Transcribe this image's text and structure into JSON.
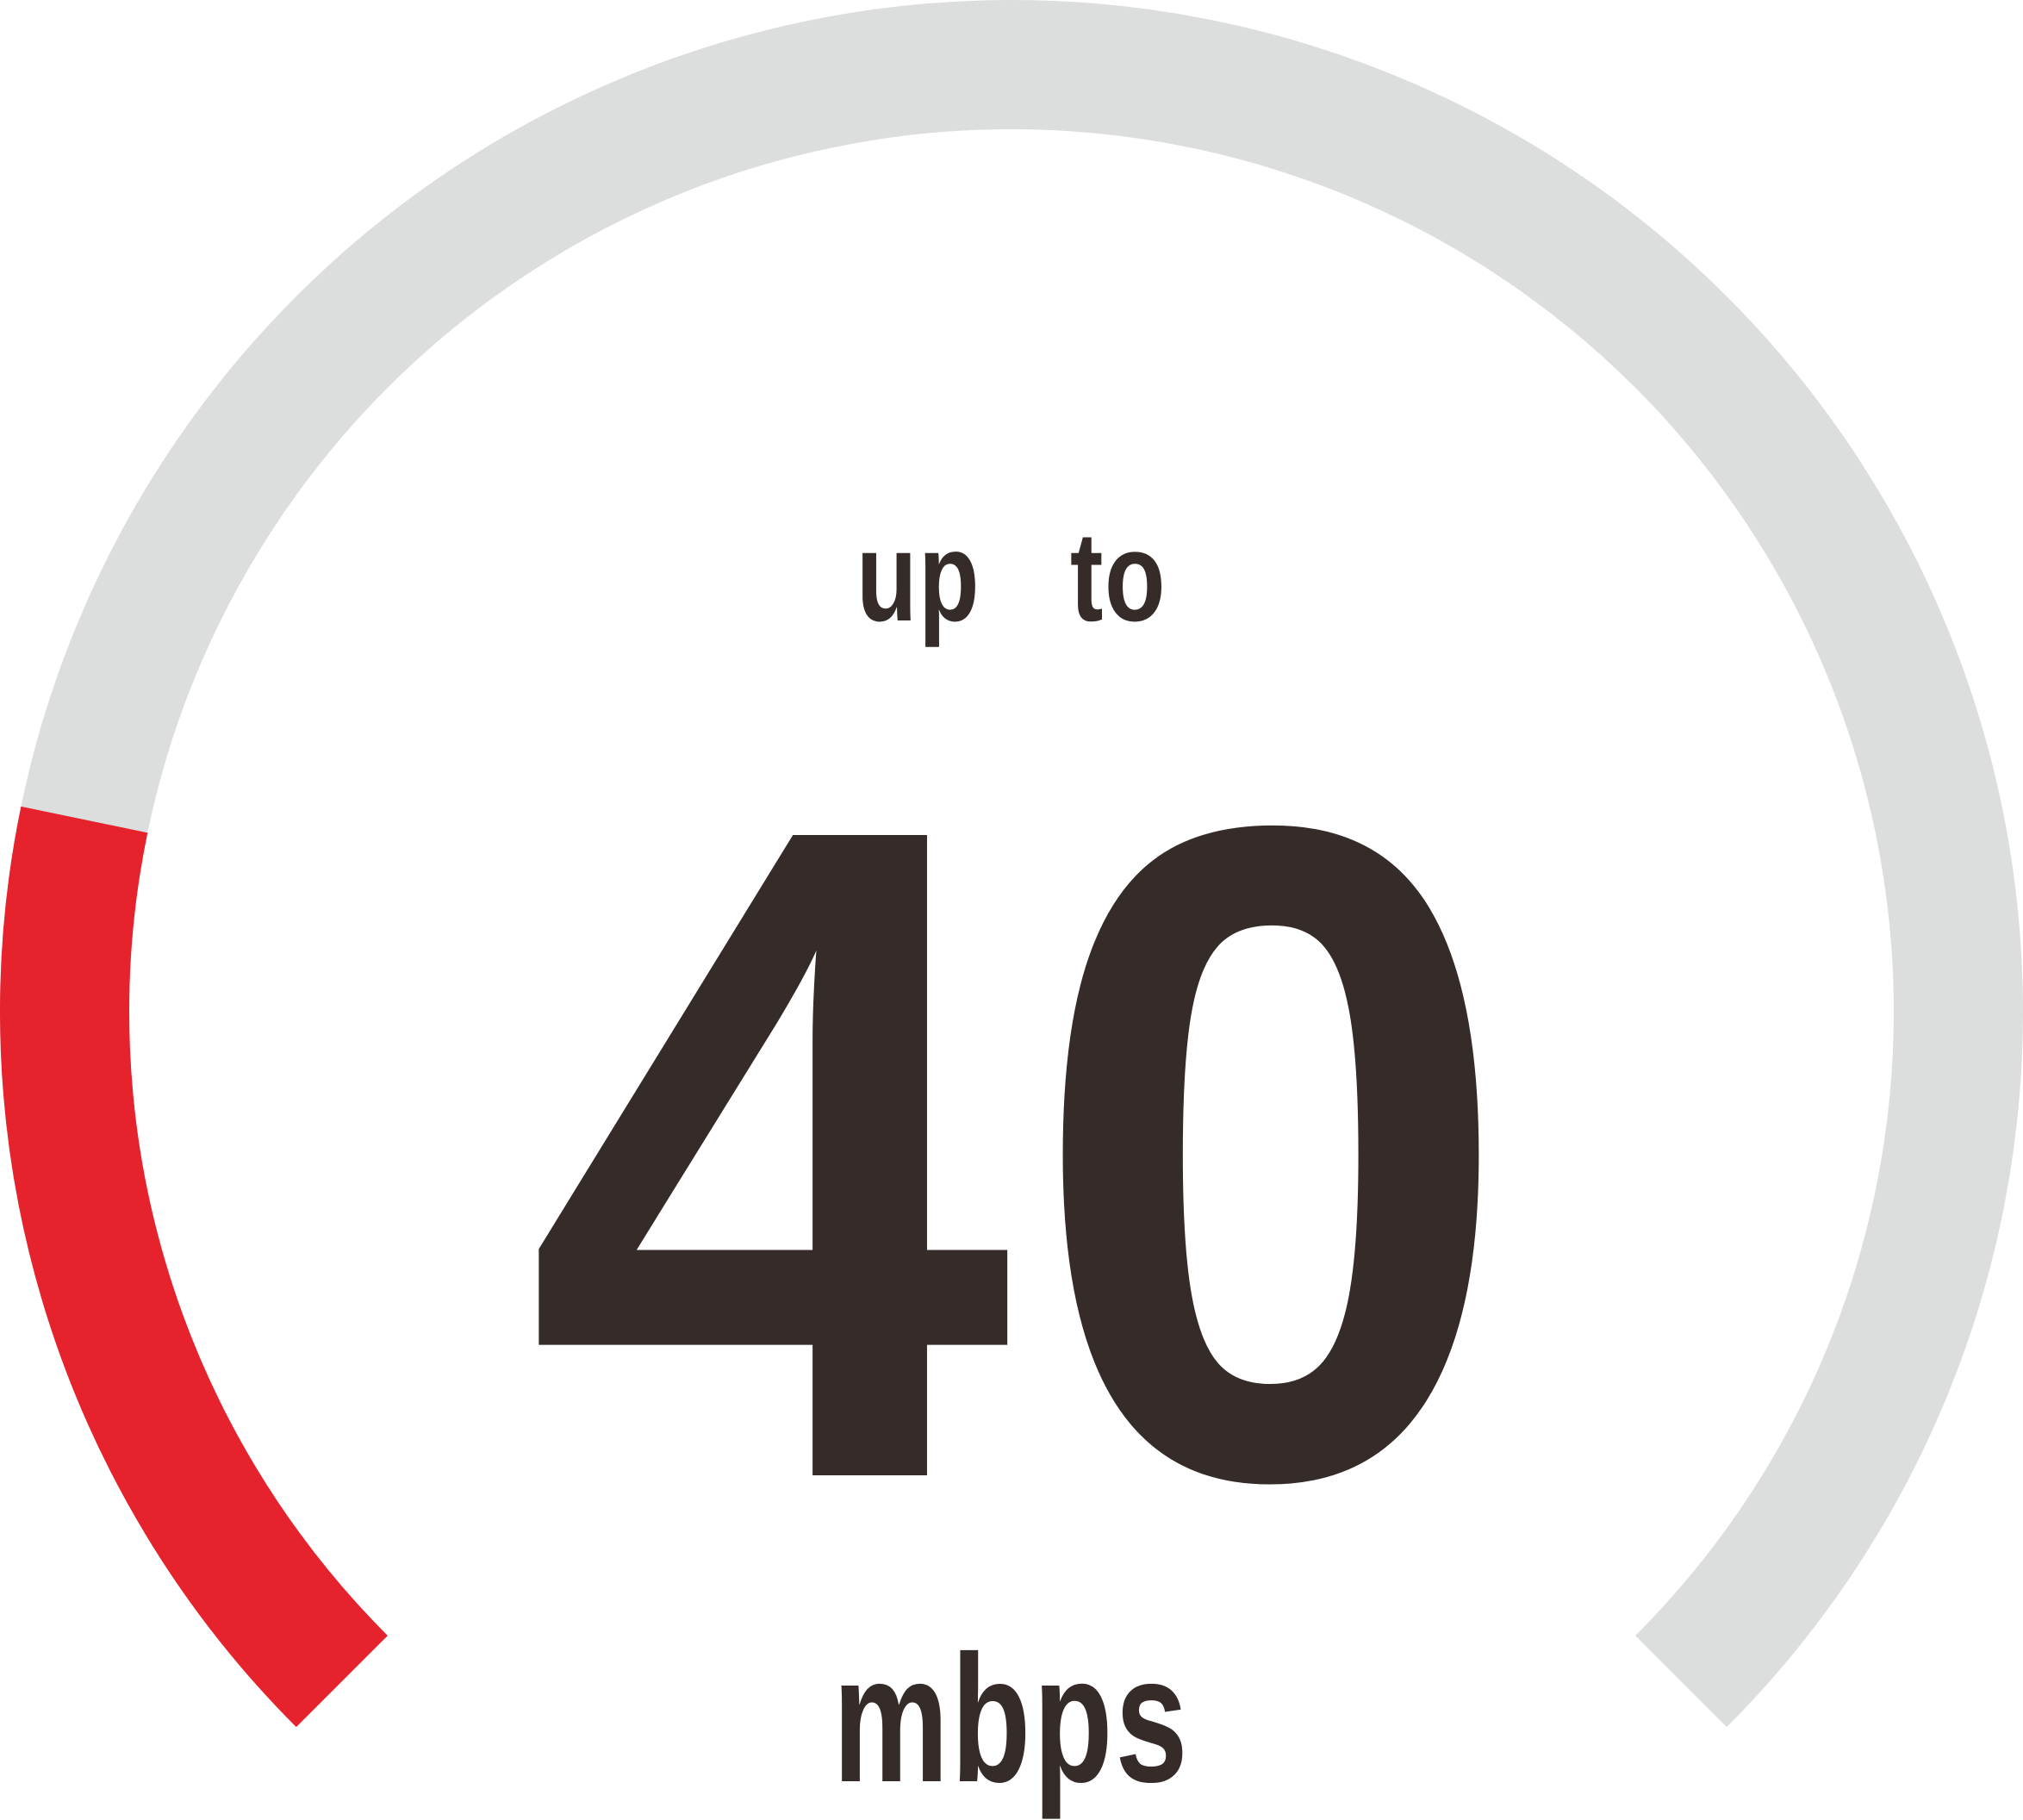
{
  "gauge": {
    "fill_fraction": 0.21,
    "fill_color": "#e6222c",
    "track_color": "#dcdedd"
  },
  "text_color": "#352b29",
  "prefix": "up to",
  "value": "40",
  "unit": "mbps"
}
